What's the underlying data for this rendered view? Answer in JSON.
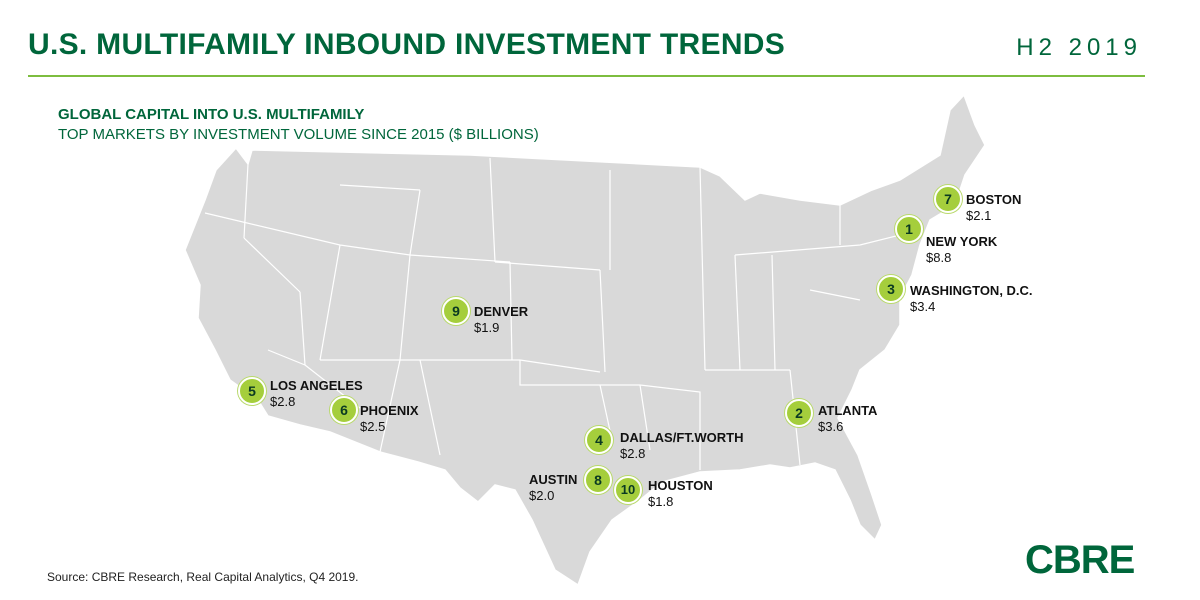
{
  "header": {
    "title": "U.S. MULTIFAMILY INBOUND INVESTMENT TRENDS",
    "period": "H2 2019"
  },
  "subtitle": {
    "line1": "GLOBAL CAPITAL INTO U.S. MULTIFAMILY",
    "line2": "TOP MARKETS BY INVESTMENT VOLUME SINCE 2015 ($ BILLIONS)"
  },
  "colors": {
    "brand_green": "#00663b",
    "accent_green": "#7dbd3f",
    "marker_fill": "#a5ce3c",
    "map_fill": "#d8d8d8",
    "state_borders": "#ffffff"
  },
  "markets": [
    {
      "rank": "1",
      "city": "NEW YORK",
      "value": "$8.8"
    },
    {
      "rank": "2",
      "city": "ATLANTA",
      "value": "$3.6"
    },
    {
      "rank": "3",
      "city": "WASHINGTON, D.C.",
      "value": "$3.4"
    },
    {
      "rank": "4",
      "city": "DALLAS/FT.WORTH",
      "value": "$2.8"
    },
    {
      "rank": "5",
      "city": "LOS ANGELES",
      "value": "$2.8"
    },
    {
      "rank": "6",
      "city": "PHOENIX",
      "value": "$2.5"
    },
    {
      "rank": "7",
      "city": "BOSTON",
      "value": "$2.1"
    },
    {
      "rank": "8",
      "city": "AUSTIN",
      "value": "$2.0"
    },
    {
      "rank": "9",
      "city": "DENVER",
      "value": "$1.9"
    },
    {
      "rank": "10",
      "city": "HOUSTON",
      "value": "$1.8"
    }
  ],
  "footer": {
    "source": "Source: CBRE Research, Real Capital Analytics, Q4 2019.",
    "logo": "CBRE"
  }
}
